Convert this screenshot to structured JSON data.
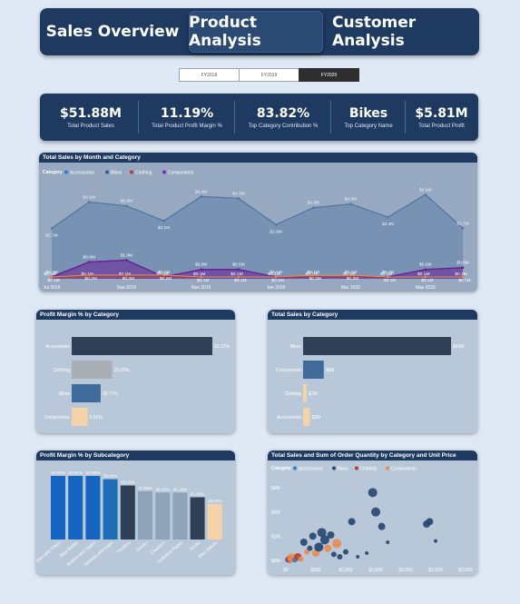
{
  "nav": {
    "tabs": [
      {
        "label": "Sales Overview",
        "active": false
      },
      {
        "label": "Product Analysis",
        "active": true
      },
      {
        "label": "Customer Analysis",
        "active": false
      }
    ]
  },
  "years": [
    {
      "label": "FY2018",
      "selected": false
    },
    {
      "label": "FY2019",
      "selected": false
    },
    {
      "label": "FY2020",
      "selected": true
    }
  ],
  "kpis": [
    {
      "value": "$51.88M",
      "label": "Total Product Sales"
    },
    {
      "value": "11.19%",
      "label": "Total Product Profit Margin %"
    },
    {
      "value": "83.82%",
      "label": "Top Category Contribution %"
    },
    {
      "value": "Bikes",
      "label": "Top Category Name"
    },
    {
      "value": "$5.81M",
      "label": "Total Product Profit"
    }
  ],
  "colors": {
    "accessories": "#2b7fd6",
    "bikes": "#3a5f8a",
    "clothing": "#c0392b",
    "components": "#7030a0",
    "header": "#1e3a60"
  },
  "chart_data": [
    {
      "id": "line",
      "type": "area",
      "title": "Total Sales by Month and Category",
      "legend_title": "Category",
      "legend": [
        "Accessories",
        "Bikes",
        "Clothing",
        "Components"
      ],
      "x_ticks": [
        "Jul 2019",
        "Sep 2019",
        "Nov 2019",
        "Jan 2020",
        "Mar 2020",
        "May 2020"
      ],
      "series": [
        {
          "name": "Bikes",
          "values": [
            2.7,
            4.1,
            3.9,
            3.1,
            4.4,
            4.3,
            2.9,
            3.8,
            4.0,
            3.3,
            4.5,
            2.7
          ],
          "labels": [
            "$2.7M",
            "$4.1M",
            "$3.9M",
            "$3.1M",
            "$4.4M",
            "$4.3M",
            "$2.9M",
            "$3.8M",
            "$4.0M",
            "$3.3M",
            "$4.5M",
            "$2.7M"
          ]
        },
        {
          "name": "Components",
          "values": [
            0.1,
            0.9,
            1.0,
            0.1,
            0.5,
            0.5,
            0.1,
            0.1,
            0.1,
            0.1,
            0.5,
            0.6
          ],
          "labels": [
            "$0.1M",
            "$0.9M",
            "$1.0M",
            "$0.1M",
            "$0.5M",
            "$0.5M",
            "$0.1M",
            "$0.1M",
            "$0.1M",
            "$0.1M",
            "$0.5M",
            "$0.6M"
          ]
        },
        {
          "name": "Clothing",
          "values": [
            0.1,
            0.1,
            0.1,
            0.1,
            0.1,
            0.1,
            0.1,
            0.1,
            0.1,
            0.1,
            0.1,
            0.1
          ],
          "labels": [
            "$0.1M",
            "$0.1M",
            "$0.1M",
            "$0.1M",
            "$0.1M",
            "$0.1M",
            "$0.1M",
            "$0.1M",
            "$0.1M",
            "$0.1M",
            "$0.1M",
            "$0.1M"
          ]
        },
        {
          "name": "Accessories",
          "values": [
            0.1,
            0.2,
            0.2,
            0.2,
            0.1,
            0.1,
            0.1,
            0.2,
            0.2,
            0.1,
            0.1,
            0.1
          ],
          "labels": [
            "$0.1M",
            "$0.2M",
            "$0.2M",
            "$0.2M",
            "$0.1M",
            "$0.1M",
            "$0.1M",
            "$0.2M",
            "$0.2M",
            "$0.1M",
            "$0.1M",
            "$0.1M"
          ]
        }
      ],
      "ylim": [
        0,
        5
      ]
    },
    {
      "id": "margin_cat",
      "type": "bar",
      "title": "Profit Margin % by Category",
      "categories": [
        "Accessories",
        "Clothing",
        "Bikes",
        "Components"
      ],
      "values": [
        52.37,
        15.05,
        10.77,
        5.91
      ],
      "labels": [
        "52.37%",
        "15.05%",
        "10.77%",
        "5.91%"
      ],
      "colors": [
        "#2e3f56",
        "#a9adb4",
        "#3f6a9a",
        "#f5d3a8"
      ]
    },
    {
      "id": "sales_cat",
      "type": "bar",
      "title": "Total Sales by Category",
      "categories": [
        "Bikes",
        "Components",
        "Clothing",
        "Accessories"
      ],
      "values": [
        43,
        6,
        1,
        2
      ],
      "labels": [
        "$43M",
        "$6M",
        "$1M",
        "$2M"
      ],
      "colors": [
        "#2e3f56",
        "#3f6a9a",
        "#f5d3a8",
        "#f5d3a8"
      ]
    },
    {
      "id": "margin_sub",
      "type": "bar",
      "title": "Profit Margin % by Subcategory",
      "categories": [
        "Tires and Tubes",
        "Bike Racks",
        "Bottles and Cages",
        "Helmets and Caps",
        "Fenders",
        "Gloves",
        "Cleaners",
        "Hydration Packs",
        "Socks",
        "Bike Stands"
      ],
      "values": [
        62.6,
        62.6,
        62.6,
        59.4,
        53.2,
        47.6,
        46.2,
        46.2,
        41.6,
        35.1
      ],
      "labels": [
        "62.60%",
        "62.60%",
        "62.58%",
        "59.40%",
        "53.16%",
        "47.55%",
        "46.25%",
        "46.18%",
        "41.62%",
        "35.07%"
      ],
      "colors": [
        "#1565c0",
        "#1565c0",
        "#1565c0",
        "#1e6fb8",
        "#2e3f56",
        "#8ea3b8",
        "#8ea3b8",
        "#8ea3b8",
        "#2e3f56",
        "#f5d3a8"
      ]
    },
    {
      "id": "scatter",
      "type": "scatter",
      "title": "Total Sales and Sum of Order Quantity by Category and Unit Price",
      "legend_title": "Category",
      "legend": [
        "Accessories",
        "Bikes",
        "Clothing",
        "Components"
      ],
      "x_ticks": [
        "$0",
        "$500",
        "$1,000",
        "$1,500",
        "$2,000",
        "$2,500",
        "$3,000"
      ],
      "y_ticks": [
        "$0M",
        "$2M",
        "$4M",
        "$6M"
      ],
      "xlim": [
        0,
        3000
      ],
      "ylim": [
        0,
        6
      ],
      "points": [
        {
          "x": 30,
          "y": 0.05,
          "r": 3,
          "cat": "Accessories"
        },
        {
          "x": 60,
          "y": 0.1,
          "r": 4,
          "cat": "Clothing"
        },
        {
          "x": 100,
          "y": 0.2,
          "r": 5,
          "cat": "Components"
        },
        {
          "x": 150,
          "y": 0.05,
          "r": 3,
          "cat": "Accessories"
        },
        {
          "x": 200,
          "y": 0.3,
          "r": 4,
          "cat": "Clothing"
        },
        {
          "x": 250,
          "y": 0.1,
          "r": 3,
          "cat": "Components"
        },
        {
          "x": 300,
          "y": 1.5,
          "r": 4,
          "cat": "Bikes"
        },
        {
          "x": 350,
          "y": 0.7,
          "r": 3,
          "cat": "Components"
        },
        {
          "x": 400,
          "y": 1.0,
          "r": 3,
          "cat": "Bikes"
        },
        {
          "x": 450,
          "y": 2.0,
          "r": 4,
          "cat": "Bikes"
        },
        {
          "x": 500,
          "y": 0.6,
          "r": 4,
          "cat": "Components"
        },
        {
          "x": 550,
          "y": 1.1,
          "r": 5,
          "cat": "Bikes"
        },
        {
          "x": 600,
          "y": 2.3,
          "r": 5,
          "cat": "Bikes"
        },
        {
          "x": 650,
          "y": 1.7,
          "r": 5,
          "cat": "Bikes"
        },
        {
          "x": 700,
          "y": 1.0,
          "r": 4,
          "cat": "Components"
        },
        {
          "x": 750,
          "y": 2.1,
          "r": 4,
          "cat": "Bikes"
        },
        {
          "x": 800,
          "y": 0.5,
          "r": 3,
          "cat": "Bikes"
        },
        {
          "x": 850,
          "y": 1.4,
          "r": 5,
          "cat": "Components"
        },
        {
          "x": 900,
          "y": 0.3,
          "r": 3,
          "cat": "Bikes"
        },
        {
          "x": 1000,
          "y": 0.7,
          "r": 3,
          "cat": "Bikes"
        },
        {
          "x": 1100,
          "y": 3.2,
          "r": 4,
          "cat": "Bikes"
        },
        {
          "x": 1200,
          "y": 0.3,
          "r": 2,
          "cat": "Bikes"
        },
        {
          "x": 1350,
          "y": 0.6,
          "r": 2,
          "cat": "Bikes"
        },
        {
          "x": 1450,
          "y": 5.6,
          "r": 5,
          "cat": "Bikes"
        },
        {
          "x": 1500,
          "y": 4.0,
          "r": 5,
          "cat": "Bikes"
        },
        {
          "x": 1600,
          "y": 2.8,
          "r": 4,
          "cat": "Bikes"
        },
        {
          "x": 1700,
          "y": 1.5,
          "r": 2,
          "cat": "Bikes"
        },
        {
          "x": 2350,
          "y": 3.0,
          "r": 4,
          "cat": "Bikes"
        },
        {
          "x": 2400,
          "y": 3.2,
          "r": 4,
          "cat": "Bikes"
        },
        {
          "x": 2500,
          "y": 1.6,
          "r": 2,
          "cat": "Bikes"
        }
      ]
    }
  ]
}
